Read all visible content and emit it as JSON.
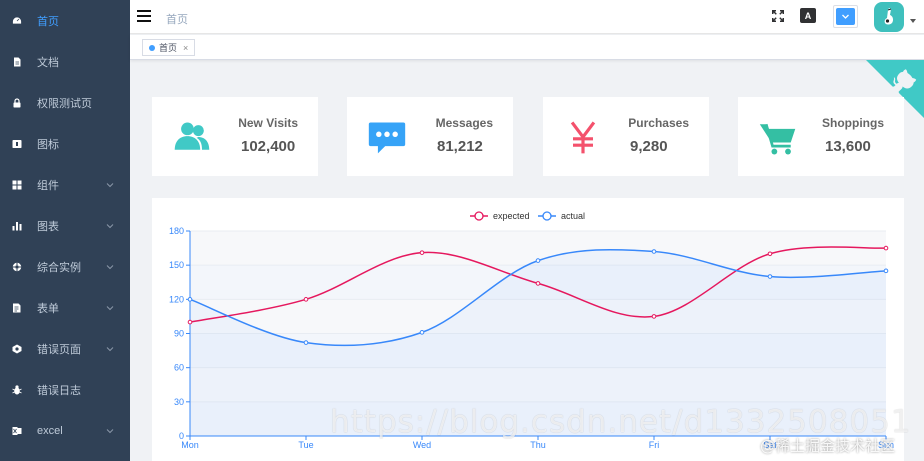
{
  "sidebar": {
    "items": [
      {
        "label": "首页",
        "icon": "dashboard-icon",
        "active": true,
        "has_arrow": false
      },
      {
        "label": "文档",
        "icon": "document-icon",
        "active": false,
        "has_arrow": false
      },
      {
        "label": "权限测试页",
        "icon": "lock-icon",
        "active": false,
        "has_arrow": false
      },
      {
        "label": "图标",
        "icon": "icon-icon",
        "active": false,
        "has_arrow": false
      },
      {
        "label": "组件",
        "icon": "component-icon",
        "active": false,
        "has_arrow": true
      },
      {
        "label": "图表",
        "icon": "chart-icon",
        "active": false,
        "has_arrow": true
      },
      {
        "label": "综合实例",
        "icon": "example-icon",
        "active": false,
        "has_arrow": true
      },
      {
        "label": "表单",
        "icon": "form-icon",
        "active": false,
        "has_arrow": true
      },
      {
        "label": "错误页面",
        "icon": "404-icon",
        "active": false,
        "has_arrow": true
      },
      {
        "label": "错误日志",
        "icon": "bug-icon",
        "active": false,
        "has_arrow": false
      },
      {
        "label": "excel",
        "icon": "excel-icon",
        "active": false,
        "has_arrow": true
      }
    ]
  },
  "navbar": {
    "breadcrumb": "首页",
    "size_label": "A"
  },
  "tags_view": {
    "tags": [
      {
        "label": "首页",
        "close": "×"
      }
    ]
  },
  "panels": [
    {
      "title": "New Visits",
      "value": "102,400",
      "icon": "peoples-icon",
      "color": "#40c9c6"
    },
    {
      "title": "Messages",
      "value": "81,212",
      "icon": "message-icon",
      "color": "#36a3f7"
    },
    {
      "title": "Purchases",
      "value": "9,280",
      "icon": "money-icon",
      "color": "#f4516c"
    },
    {
      "title": "Shoppings",
      "value": "13,600",
      "icon": "shopping-icon",
      "color": "#34bfa3"
    }
  ],
  "chart_data": {
    "type": "line",
    "categories": [
      "Mon",
      "Tue",
      "Wed",
      "Thu",
      "Fri",
      "Sat",
      "Sun"
    ],
    "series": [
      {
        "name": "expected",
        "values": [
          100,
          120,
          161,
          134,
          105,
          160,
          165
        ],
        "color": "#e5185e"
      },
      {
        "name": "actual",
        "values": [
          120,
          82,
          91,
          154,
          162,
          140,
          145
        ],
        "color": "#3888fa"
      }
    ],
    "ylim": [
      0,
      180
    ],
    "yticks": [
      0,
      30,
      60,
      90,
      120,
      150,
      180
    ],
    "legend": "top-center",
    "grid": true
  },
  "watermark": {
    "url": "https://blog.csdn.net/d1332508051",
    "site": "@稀土掘金技术社区"
  }
}
